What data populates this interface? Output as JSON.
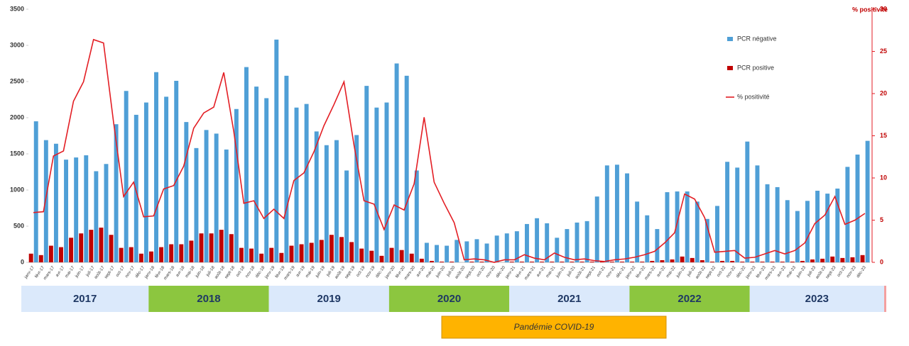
{
  "chart_data": {
    "type": "bar",
    "categories": [
      "janv-17",
      "févr-17",
      "mars-17",
      "avr-17",
      "mai-17",
      "juin-17",
      "juil-17",
      "août-17",
      "sept-17",
      "oct-17",
      "nov-17",
      "déc-17",
      "janv-18",
      "févr-18",
      "mars-18",
      "avr-18",
      "mai-18",
      "juin-18",
      "juil-18",
      "août-18",
      "sept-18",
      "oct-18",
      "nov-18",
      "déc-18",
      "janv-19",
      "févr-19",
      "mars-19",
      "avr-19",
      "mai-19",
      "juin-19",
      "juil-19",
      "août-19",
      "sept-19",
      "oct-19",
      "nov-19",
      "déc-19",
      "janv-20",
      "févr-20",
      "mars-20",
      "avr-20",
      "mai-20",
      "juin-20",
      "juil-20",
      "août-20",
      "sept-20",
      "oct-20",
      "nov-20",
      "déc-20",
      "janv-21",
      "févr-21",
      "mars-21",
      "avr-21",
      "mai-21",
      "juin-21",
      "juil-21",
      "août-21",
      "sept-21",
      "oct-21",
      "nov-21",
      "déc-21",
      "janv-22",
      "févr-22",
      "mars-22",
      "avr-22",
      "mai-22",
      "juin-22",
      "juil-22",
      "août-22",
      "sept-22",
      "oct-22",
      "nov-22",
      "déc-22",
      "janv-23",
      "févr-23",
      "mars-23",
      "avr-23",
      "mai-23",
      "juin-23",
      "juil-23",
      "août-23",
      "sept-23",
      "oct-23",
      "nov-23",
      "déc-23"
    ],
    "series": [
      {
        "name": "PCR négative",
        "color": "#4f9fd6",
        "values": [
          1950,
          1690,
          1640,
          1420,
          1450,
          1480,
          1260,
          1360,
          1910,
          2370,
          2040,
          2210,
          2630,
          2290,
          2510,
          1940,
          1580,
          1830,
          1780,
          1560,
          2120,
          2700,
          2430,
          2270,
          3080,
          2580,
          2140,
          2190,
          1810,
          1620,
          1690,
          1270,
          1760,
          2440,
          2140,
          2210,
          2750,
          2580,
          1270,
          270,
          240,
          230,
          310,
          290,
          320,
          260,
          370,
          400,
          430,
          530,
          610,
          540,
          340,
          460,
          550,
          570,
          910,
          1340,
          1350,
          1230,
          840,
          650,
          460,
          970,
          980,
          980,
          840,
          600,
          780,
          1390,
          1310,
          1670,
          1340,
          1080,
          1040,
          860,
          710,
          850,
          990,
          950,
          1020,
          1320,
          1490,
          1680
        ]
      },
      {
        "name": "PCR positive",
        "color": "#c00000",
        "values": [
          120,
          100,
          230,
          210,
          340,
          400,
          450,
          480,
          380,
          200,
          210,
          120,
          150,
          210,
          250,
          250,
          300,
          400,
          400,
          450,
          390,
          200,
          190,
          120,
          200,
          130,
          230,
          250,
          270,
          310,
          380,
          350,
          280,
          190,
          160,
          90,
          200,
          170,
          120,
          50,
          20,
          10,
          10,
          0,
          10,
          10,
          0,
          0,
          10,
          10,
          10,
          10,
          10,
          10,
          10,
          10,
          10,
          10,
          10,
          10,
          10,
          10,
          20,
          30,
          40,
          80,
          60,
          30,
          10,
          20,
          20,
          10,
          10,
          10,
          10,
          10,
          10,
          20,
          40,
          50,
          80,
          60,
          70,
          100
        ]
      },
      {
        "name": "% positivité",
        "color": "#e31e24",
        "axis": "y2",
        "values": [
          5.9,
          6.0,
          12.6,
          13.2,
          19.1,
          21.4,
          26.4,
          26.0,
          16.6,
          7.8,
          9.5,
          5.4,
          5.5,
          8.7,
          9.1,
          11.4,
          15.9,
          17.7,
          18.4,
          22.5,
          15.5,
          7.0,
          7.3,
          5.2,
          6.3,
          5.2,
          9.7,
          10.6,
          13.1,
          16.2,
          18.7,
          21.4,
          13.9,
          7.3,
          6.9,
          3.9,
          6.8,
          6.2,
          9.3,
          17.2,
          9.5,
          7.0,
          4.7,
          0.3,
          0.4,
          0.3,
          0.0,
          0.3,
          0.3,
          0.9,
          0.5,
          0.3,
          1.1,
          0.6,
          0.3,
          0.4,
          0.2,
          0.1,
          0.3,
          0.4,
          0.6,
          0.9,
          1.3,
          2.3,
          3.5,
          8.1,
          7.5,
          5.3,
          1.2,
          1.3,
          1.4,
          0.5,
          0.6,
          1.0,
          1.4,
          1.0,
          1.4,
          2.3,
          4.6,
          5.6,
          7.8,
          4.5,
          5.0,
          5.8
        ]
      }
    ],
    "ylim": [
      0,
      3500
    ],
    "yticks": [
      0,
      500,
      1000,
      1500,
      2000,
      2500,
      3000,
      3500
    ],
    "y2lim": [
      0,
      30
    ],
    "y2ticks": [
      0,
      5,
      10,
      15,
      20,
      25,
      30
    ],
    "y2_label": "% positivité",
    "years": [
      "2017",
      "2018",
      "2019",
      "2020",
      "2021",
      "2022",
      "2023"
    ],
    "annotation": "Pandémie COVID-19"
  }
}
